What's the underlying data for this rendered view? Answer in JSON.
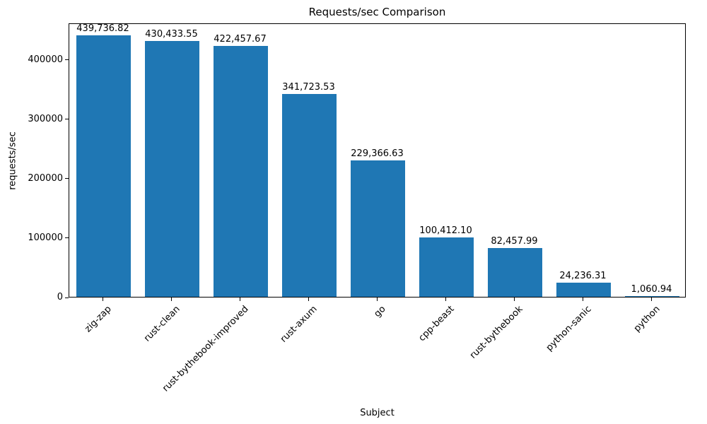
{
  "chart_data": {
    "type": "bar",
    "title": "Requests/sec Comparison",
    "xlabel": "Subject",
    "ylabel": "requests/sec",
    "categories": [
      "zig-zap",
      "rust-clean",
      "rust-bythebook-improved",
      "rust-axum",
      "go",
      "cpp-beast",
      "rust-bythebook",
      "python-sanic",
      "python"
    ],
    "values": [
      439736.82,
      430433.55,
      422457.67,
      341723.53,
      229366.63,
      100412.1,
      82457.99,
      24236.31,
      1060.94
    ],
    "value_labels": [
      "439,736.82",
      "430,433.55",
      "422,457.67",
      "341,723.53",
      "229,366.63",
      "100,412.10",
      "82,457.99",
      "24,236.31",
      "1,060.94"
    ],
    "yticks": [
      0,
      100000,
      200000,
      300000,
      400000
    ],
    "ylim": [
      0,
      461724
    ],
    "bar_color": "#1f77b4",
    "grid": false,
    "legend": "none",
    "background_color": "#ffffff",
    "text_color": "#000000"
  }
}
